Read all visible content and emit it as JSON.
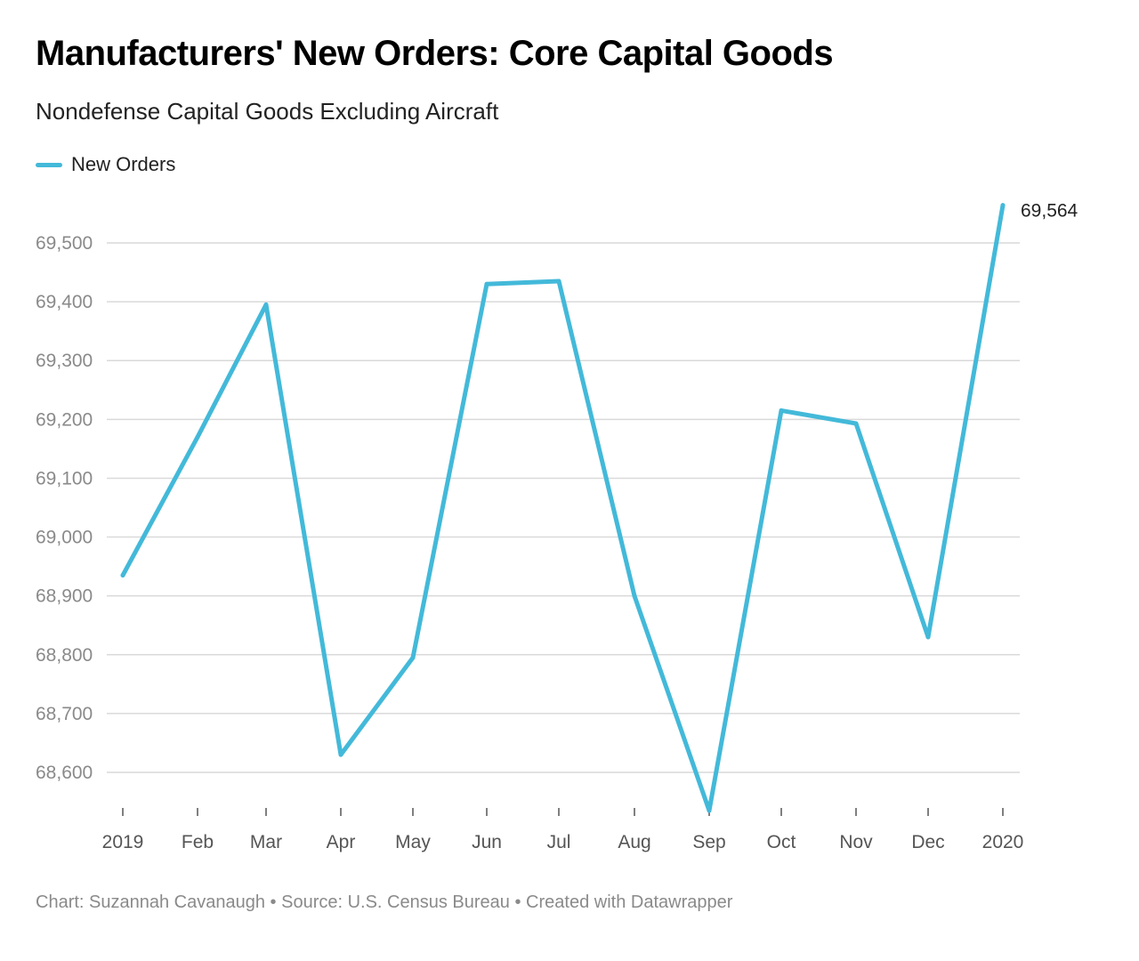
{
  "title": "Manufacturers' New Orders: Core Capital Goods",
  "subtitle": "Nondefense Capital Goods Excluding Aircraft",
  "footer": {
    "prefix": "Chart: ",
    "author": "Suzannah Cavanaugh",
    "sep1": " • ",
    "source_label": "Source: ",
    "source": "U.S. Census Bureau",
    "sep2": " • ",
    "credit": "Created with Datawrapper"
  },
  "colors": {
    "series": "#43b9d9",
    "grid": "#d9d9d9",
    "axis_text": "#8a8a8a"
  },
  "chart_data": {
    "type": "line",
    "title": "Manufacturers' New Orders: Core Capital Goods",
    "subtitle": "Nondefense Capital Goods Excluding Aircraft",
    "xlabel": "",
    "ylabel": "",
    "categories": [
      "2019",
      "Feb",
      "Mar",
      "Apr",
      "May",
      "Jun",
      "Jul",
      "Aug",
      "Sep",
      "Oct",
      "Nov",
      "Dec",
      "2020"
    ],
    "series": [
      {
        "name": "New Orders",
        "values": [
          68935,
          69170,
          69395,
          68630,
          68795,
          69430,
          69435,
          68900,
          68535,
          69215,
          69193,
          68830,
          69564
        ]
      }
    ],
    "end_label": "69,564",
    "ylim": [
      68535,
      69564
    ],
    "yticks": [
      68600,
      68700,
      68800,
      68900,
      69000,
      69100,
      69200,
      69300,
      69400,
      69500
    ],
    "ytick_labels": [
      "68,600",
      "68,700",
      "68,800",
      "68,900",
      "69,000",
      "69,100",
      "69,200",
      "69,300",
      "69,400",
      "69,500"
    ],
    "grid": true,
    "legend": "top-left"
  }
}
